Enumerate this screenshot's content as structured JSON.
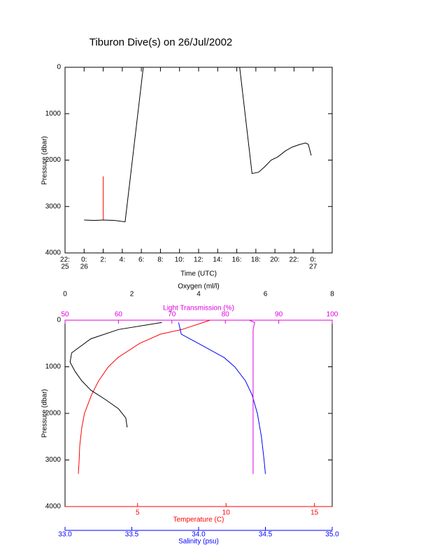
{
  "chart_data": [
    {
      "type": "line",
      "title": "Tiburon Dive(s) on 26/Jul/2002",
      "xlabel": "Time (UTC)",
      "ylabel": "Pressure (dbar)",
      "xlim": [
        -2,
        26
      ],
      "xticks": [
        {
          "value": -2,
          "label": "22:",
          "date": "25"
        },
        {
          "value": 0,
          "label": "0:",
          "date": "26"
        },
        {
          "value": 2,
          "label": "2:"
        },
        {
          "value": 4,
          "label": "4:"
        },
        {
          "value": 6,
          "label": "6:"
        },
        {
          "value": 8,
          "label": "8:"
        },
        {
          "value": 10,
          "label": "10:"
        },
        {
          "value": 12,
          "label": "12:"
        },
        {
          "value": 14,
          "label": "14:"
        },
        {
          "value": 16,
          "label": "16:"
        },
        {
          "value": 18,
          "label": "18:"
        },
        {
          "value": 20,
          "label": "20:"
        },
        {
          "value": 22,
          "label": "22:"
        },
        {
          "value": 24,
          "label": "0:",
          "date": "27"
        }
      ],
      "ylim": [
        4000,
        0
      ],
      "yticks": [
        0,
        1000,
        2000,
        3000,
        4000
      ],
      "series": [
        {
          "color": "#000000",
          "x": [
            0.0,
            1.05,
            2.0,
            3.2,
            4.3,
            6.2,
            16.3,
            17.6,
            18.3,
            18.9,
            19.6,
            20.3,
            21.1,
            21.8,
            22.5,
            23.2,
            23.5,
            23.7,
            23.8
          ],
          "values": [
            3290,
            3300,
            3290,
            3300,
            3330,
            0,
            0,
            2290,
            2260,
            2150,
            2000,
            1930,
            1800,
            1720,
            1670,
            1630,
            1660,
            1820,
            1900
          ]
        },
        {
          "color": "#ff0000",
          "x": [
            2.0,
            2.0
          ],
          "values": [
            3290,
            2350
          ]
        }
      ]
    },
    {
      "type": "profile",
      "ylabel": "Pressure (dbar)",
      "ylim": [
        4000,
        0
      ],
      "yticks": [
        0,
        1000,
        2000,
        3000,
        4000
      ],
      "x_axes": [
        {
          "label": "Oxygen (ml/l)",
          "color": "#000000",
          "lim": [
            0,
            8
          ],
          "ticks": [
            0,
            2,
            4,
            6,
            8
          ]
        },
        {
          "label": "Light Transmission (%)",
          "color": "#e000e0",
          "lim": [
            50,
            100
          ],
          "ticks": [
            50,
            60,
            70,
            80,
            90,
            100
          ]
        },
        {
          "label": "Temperature (C)",
          "color": "#ff0000",
          "lim": [
            0.9,
            16
          ],
          "ticks": [
            5,
            10,
            15
          ]
        },
        {
          "label": "Salinity (psu)",
          "color": "#0000ff",
          "lim": [
            33,
            35
          ],
          "ticks": [
            {
              "value": 33,
              "label": "33.0"
            },
            {
              "value": 33.5,
              "label": "33.5"
            },
            {
              "value": 34,
              "label": "34.0"
            },
            {
              "value": 34.5,
              "label": "34.5"
            },
            {
              "value": 35,
              "label": "35.0"
            }
          ]
        }
      ],
      "series": [
        {
          "x_axis": 2,
          "color": "#ff0000",
          "x": [
            9.1,
            7.5,
            6.3,
            5.1,
            3.9,
            3.35,
            2.8,
            2.4,
            2.2,
            2.0,
            1.85,
            1.73,
            1.7,
            1.65
          ],
          "values": [
            0,
            200,
            300,
            500,
            800,
            1000,
            1300,
            1600,
            1800,
            2000,
            2300,
            2700,
            3000,
            3300
          ]
        },
        {
          "x_axis": 3,
          "color": "#0000ff",
          "x": [
            33.85,
            33.87,
            34.0,
            34.19,
            34.27,
            34.35,
            34.4,
            34.44,
            34.47,
            34.49,
            34.5
          ],
          "values": [
            50,
            300,
            500,
            800,
            1000,
            1300,
            1600,
            2000,
            2500,
            3000,
            3300
          ]
        },
        {
          "x_axis": 0,
          "color": "#000000",
          "x": [
            2.9,
            1.6,
            0.77,
            0.2,
            0.15,
            0.3,
            0.5,
            0.77,
            1.2,
            1.6,
            1.82,
            1.86
          ],
          "values": [
            50,
            200,
            400,
            700,
            900,
            1100,
            1300,
            1500,
            1700,
            1900,
            2100,
            2300
          ]
        },
        {
          "x_axis": 1,
          "color": "#e000e0",
          "x": [
            84.5,
            85.5,
            85.2,
            85.2
          ],
          "values": [
            0,
            50,
            200,
            3300
          ]
        }
      ]
    }
  ]
}
